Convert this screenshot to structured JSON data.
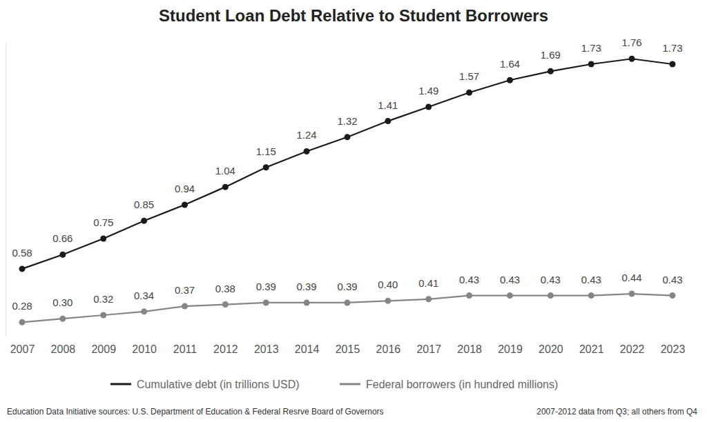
{
  "chart_data": {
    "type": "line",
    "title": "Student Loan Debt Relative to Student Borrowers",
    "categories": [
      "2007",
      "2008",
      "2009",
      "2010",
      "2011",
      "2012",
      "2013",
      "2014",
      "2015",
      "2016",
      "2017",
      "2018",
      "2019",
      "2020",
      "2021",
      "2022",
      "2023"
    ],
    "series": [
      {
        "name": "Cumulative debt (in trillions USD)",
        "color": "#1a1a1a",
        "marker": "circle",
        "line_style": "solid",
        "values": [
          0.58,
          0.66,
          0.75,
          0.85,
          0.94,
          1.04,
          1.15,
          1.24,
          1.32,
          1.41,
          1.49,
          1.57,
          1.64,
          1.69,
          1.73,
          1.76,
          1.73
        ]
      },
      {
        "name": "Federal borrowers (in hundred millions)",
        "color": "#858585",
        "marker": "circle",
        "line_style": "solid",
        "values": [
          0.28,
          0.3,
          0.32,
          0.34,
          0.37,
          0.38,
          0.39,
          0.39,
          0.39,
          0.4,
          0.41,
          0.43,
          0.43,
          0.43,
          0.43,
          0.44,
          0.43
        ],
        "value_labels": [
          "0.28",
          "0.30",
          "0.32",
          "0.34",
          "0.37",
          "0.38",
          "0.39",
          "0.39",
          "0.39",
          "0.40",
          "0.41",
          "0.43",
          "0.43",
          "0.43",
          "0.43",
          "0.44",
          "0.43"
        ]
      }
    ],
    "ylim": [
      0.2,
      1.85
    ],
    "yticks": [],
    "grid": false,
    "legend": "bottom",
    "data_labels": true,
    "tick_labels": "x",
    "annotations": [
      "Education Data Initiative sources: U.S. Department of Education & Federal Resrve Board of Governors",
      "2007-2012 data from Q3; all others from Q4"
    ]
  }
}
